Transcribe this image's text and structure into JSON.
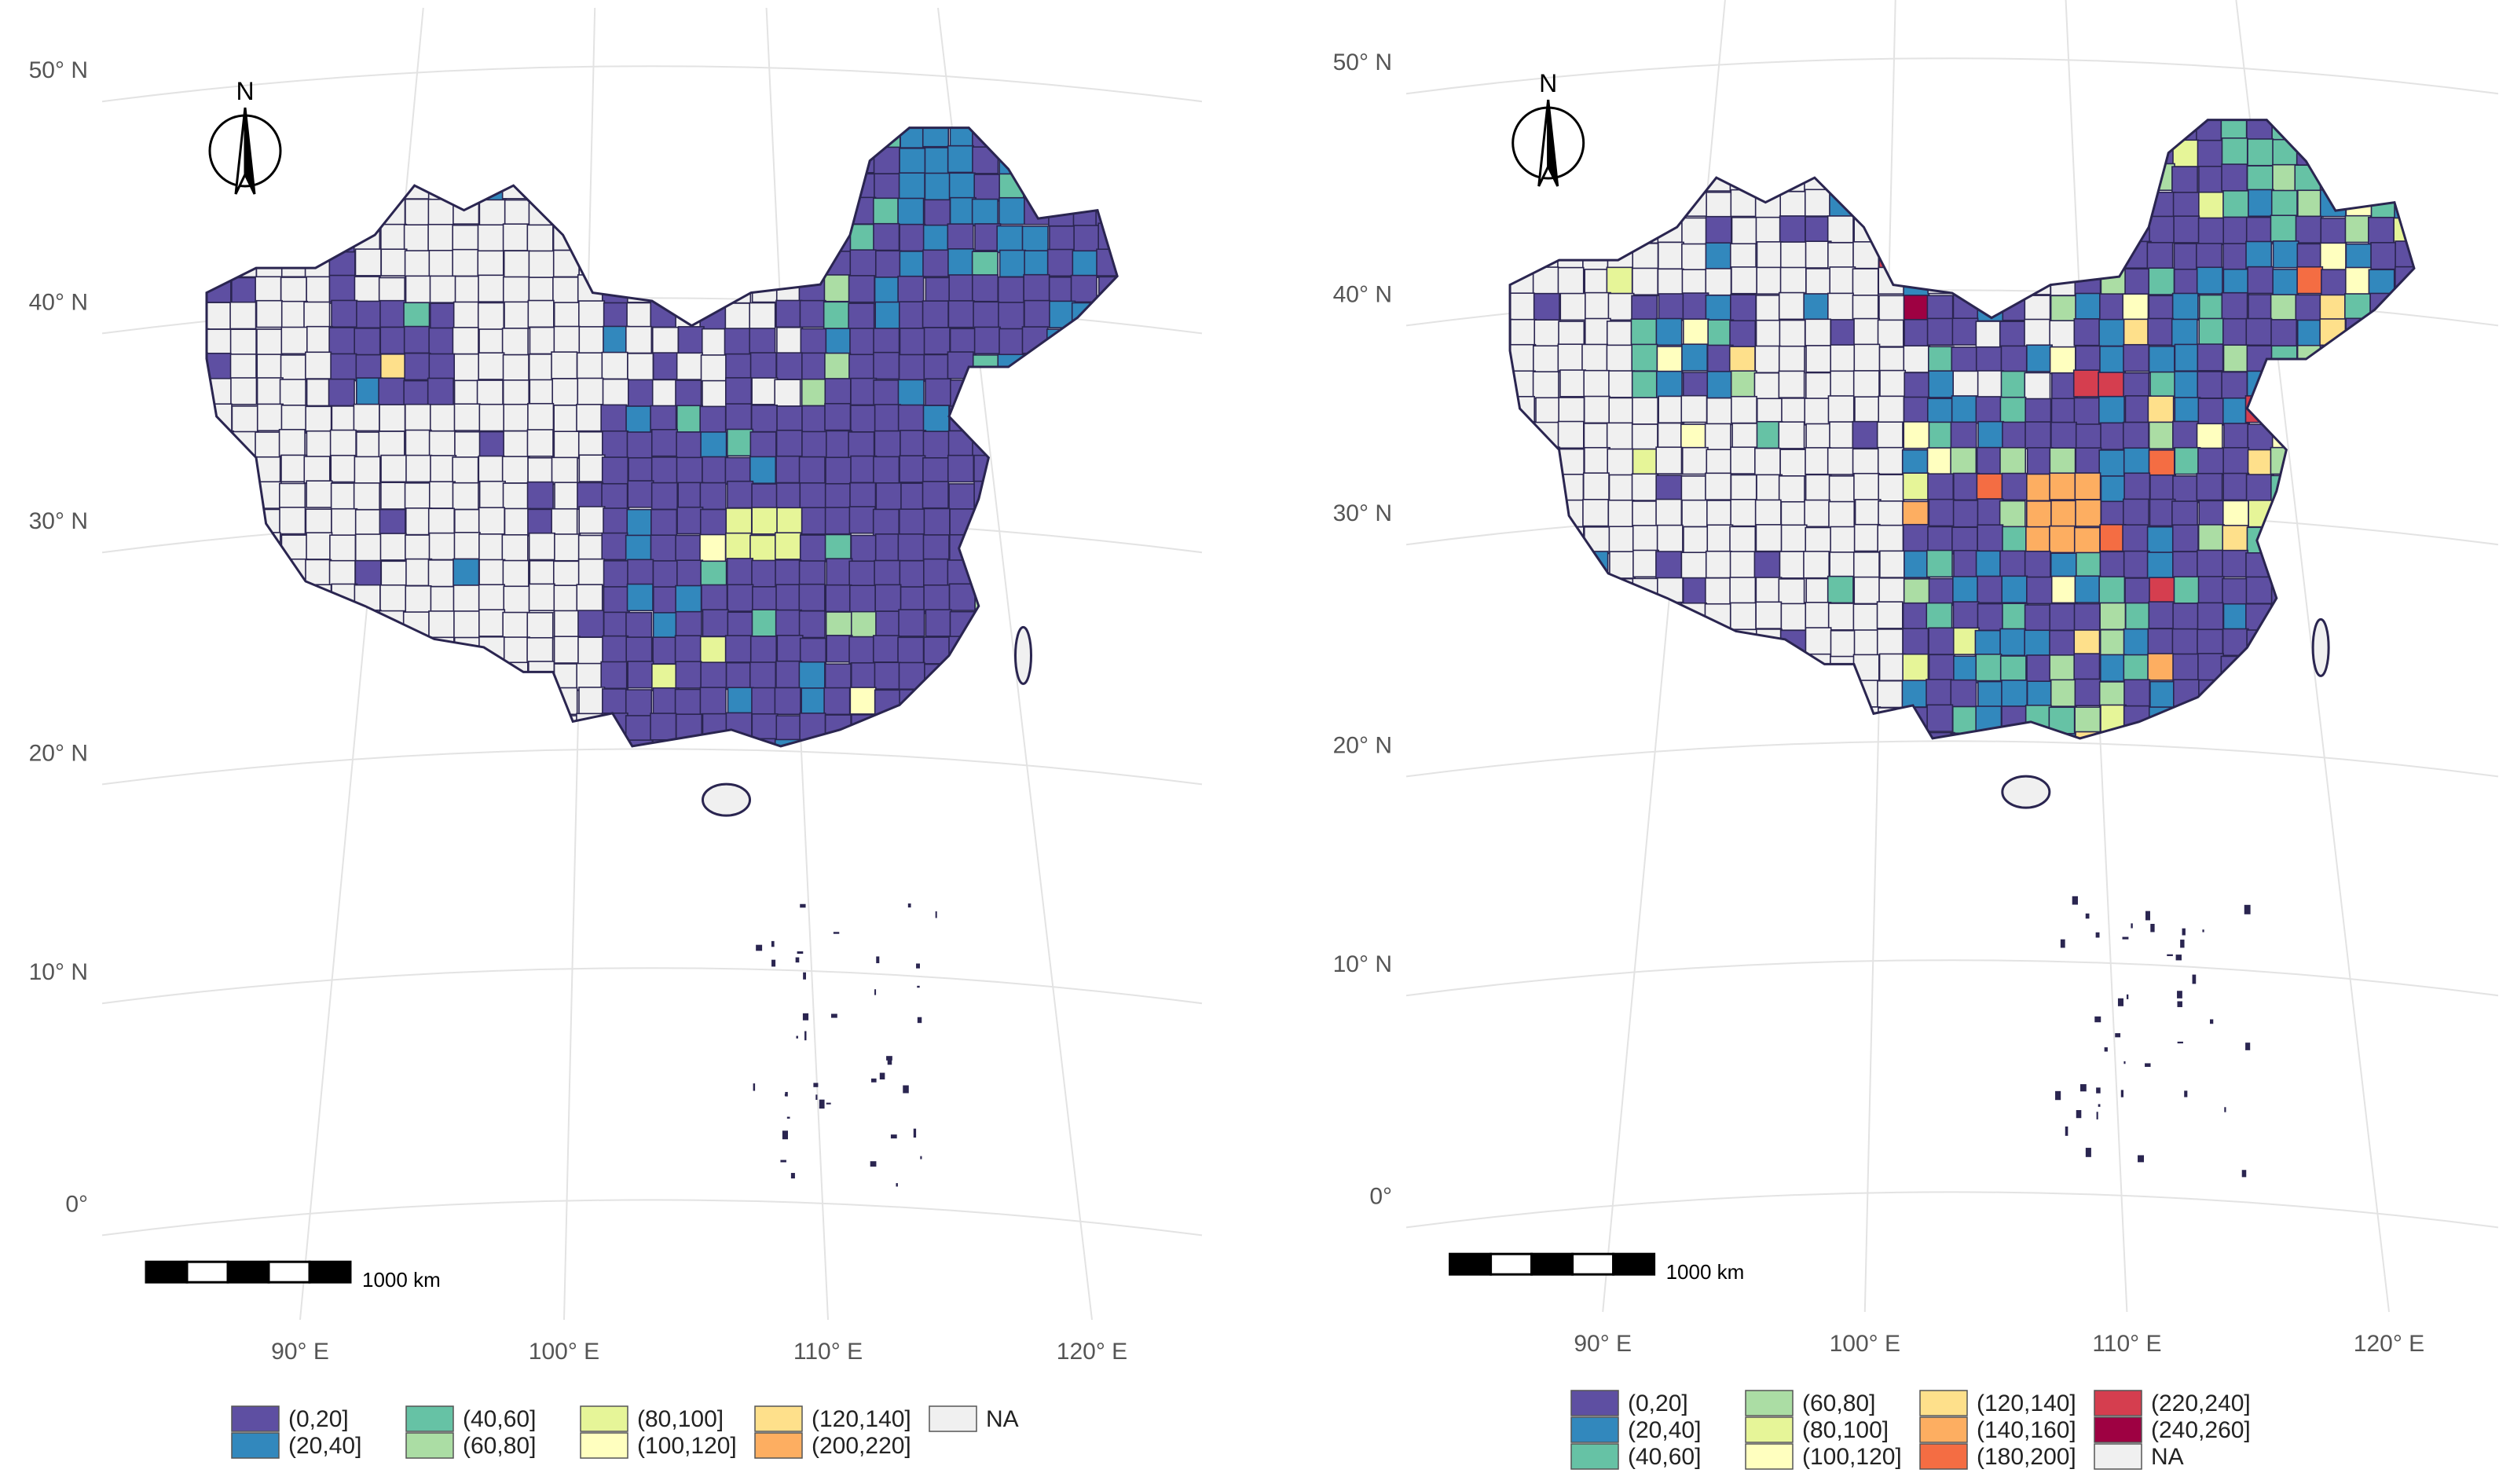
{
  "north_label": "N",
  "scale_bar_label": "1000 km",
  "lat_labels": [
    "50° N",
    "40° N",
    "30° N",
    "20° N",
    "10° N",
    "0°"
  ],
  "lon_labels": [
    "90° E",
    "100° E",
    "110° E",
    "120° E"
  ],
  "colors": {
    "c0_20": "#5e4fa2",
    "c20_40": "#3288bd",
    "c40_60": "#66c2a5",
    "c60_80": "#abdda4",
    "c80_100": "#e6f598",
    "c100_120": "#ffffbf",
    "c120_140": "#fee08b",
    "c140_160": "#fdae61",
    "c180_200": "#f46d43",
    "c200_220": "#fdae61",
    "c220_240": "#d53e4f",
    "c240_260": "#9e0142",
    "na": "#f0f0f0",
    "border": "#2a2550",
    "grid": "#e3e3e3"
  },
  "chart_data": [
    {
      "type": "choropleth",
      "panel": "left",
      "legend": [
        {
          "label": "(0,20]",
          "color": "#5e4fa2"
        },
        {
          "label": "(20,40]",
          "color": "#3288bd"
        },
        {
          "label": "(40,60]",
          "color": "#66c2a5"
        },
        {
          "label": "(60,80]",
          "color": "#abdda4"
        },
        {
          "label": "(80,100]",
          "color": "#e6f598"
        },
        {
          "label": "(100,120]",
          "color": "#ffffbf"
        },
        {
          "label": "(120,140]",
          "color": "#fee08b"
        },
        {
          "label": "(200,220]",
          "color": "#fdae61"
        },
        {
          "label": "NA",
          "color": "#f0f0f0"
        }
      ]
    },
    {
      "type": "choropleth",
      "panel": "right",
      "legend": [
        {
          "label": "(0,20]",
          "color": "#5e4fa2"
        },
        {
          "label": "(20,40]",
          "color": "#3288bd"
        },
        {
          "label": "(40,60]",
          "color": "#66c2a5"
        },
        {
          "label": "(60,80]",
          "color": "#abdda4"
        },
        {
          "label": "(80,100]",
          "color": "#e6f598"
        },
        {
          "label": "(100,120]",
          "color": "#ffffbf"
        },
        {
          "label": "(120,140]",
          "color": "#fee08b"
        },
        {
          "label": "(140,160]",
          "color": "#fdae61"
        },
        {
          "label": "(180,200]",
          "color": "#f46d43"
        },
        {
          "label": "(220,240]",
          "color": "#d53e4f"
        },
        {
          "label": "(240,260]",
          "color": "#9e0142"
        },
        {
          "label": "NA",
          "color": "#f0f0f0"
        }
      ]
    }
  ]
}
